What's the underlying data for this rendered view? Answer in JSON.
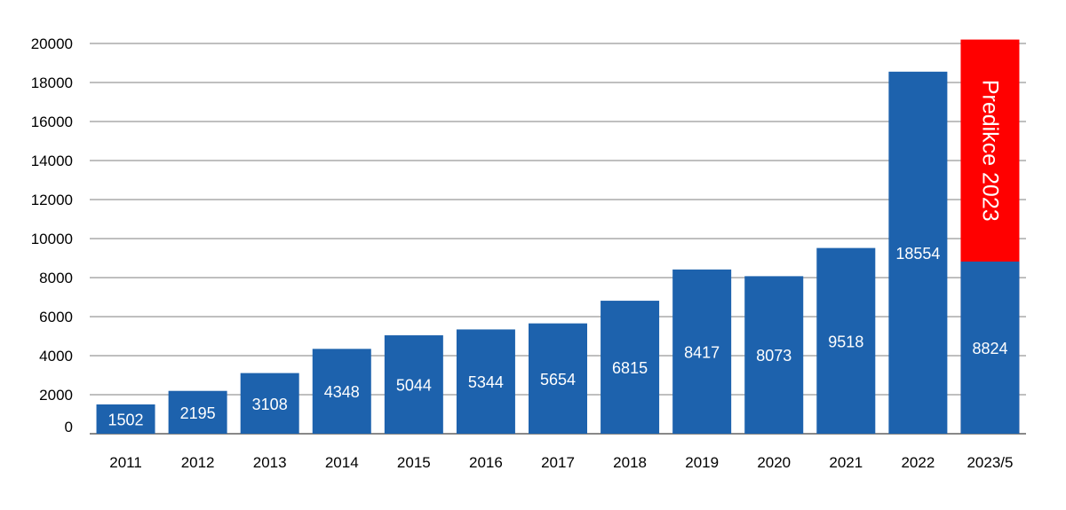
{
  "chart_data": {
    "type": "bar",
    "categories": [
      "2011",
      "2012",
      "2013",
      "2014",
      "2015",
      "2016",
      "2017",
      "2018",
      "2019",
      "2020",
      "2021",
      "2022",
      "2023/5"
    ],
    "series": [
      {
        "values": [
          1502,
          2195,
          3108,
          4348,
          5044,
          5344,
          5654,
          6815,
          8417,
          8073,
          9518,
          18554,
          8824
        ],
        "labels": [
          "1502",
          "2195",
          "3108",
          "4348",
          "5044",
          "5344",
          "5654",
          "6815",
          "8417",
          "8073",
          "9518",
          "18554",
          "8824"
        ]
      }
    ],
    "prediction": {
      "category": "2023/5",
      "value": 20200,
      "label": "Predikce 2023"
    },
    "ylim": [
      0,
      20000
    ],
    "yticks": [
      0,
      2000,
      4000,
      6000,
      8000,
      10000,
      12000,
      14000,
      16000,
      18000,
      20000
    ],
    "ytick_labels": [
      "0",
      "2000",
      "4000",
      "6000",
      "8000",
      "10000",
      "12000",
      "14000",
      "16000",
      "18000",
      "20000"
    ],
    "grid": true,
    "colors": {
      "bar": "#1d62ad",
      "prediction": "#ff0000",
      "grid": "#7f7f7f"
    },
    "title": "",
    "xlabel": "",
    "ylabel": ""
  }
}
